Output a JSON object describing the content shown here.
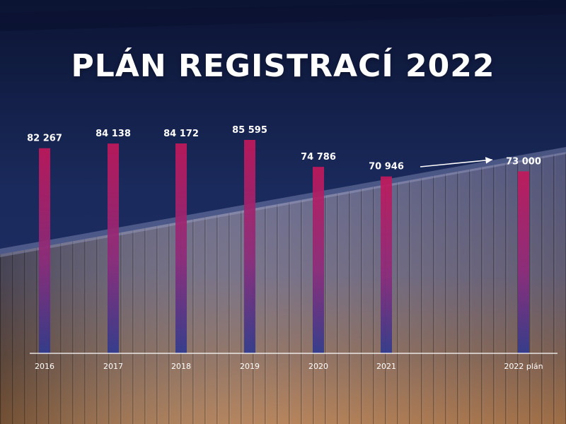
{
  "page": {
    "title": "PLÁN REGISTRACÍ 2022"
  },
  "colors": {
    "bar_top": "#c2185b",
    "bar_bottom": "#2f3a8f",
    "text": "#ffffff",
    "axis": "#ffffff"
  },
  "chart_data": {
    "type": "bar",
    "title": "PLÁN REGISTRACÍ 2022",
    "categories": [
      "2016",
      "2017",
      "2018",
      "2019",
      "2020",
      "2021",
      "2022 plán"
    ],
    "values": [
      82267,
      84138,
      84172,
      85595,
      74786,
      70946,
      73000
    ],
    "value_labels": [
      "82 267",
      "84 138",
      "84 172",
      "85 595",
      "74 786",
      "70 946",
      "73 000"
    ],
    "xlabel": "",
    "ylabel": "",
    "grid": false,
    "annotation": "arrow from 2021 toward 2022 plán"
  }
}
